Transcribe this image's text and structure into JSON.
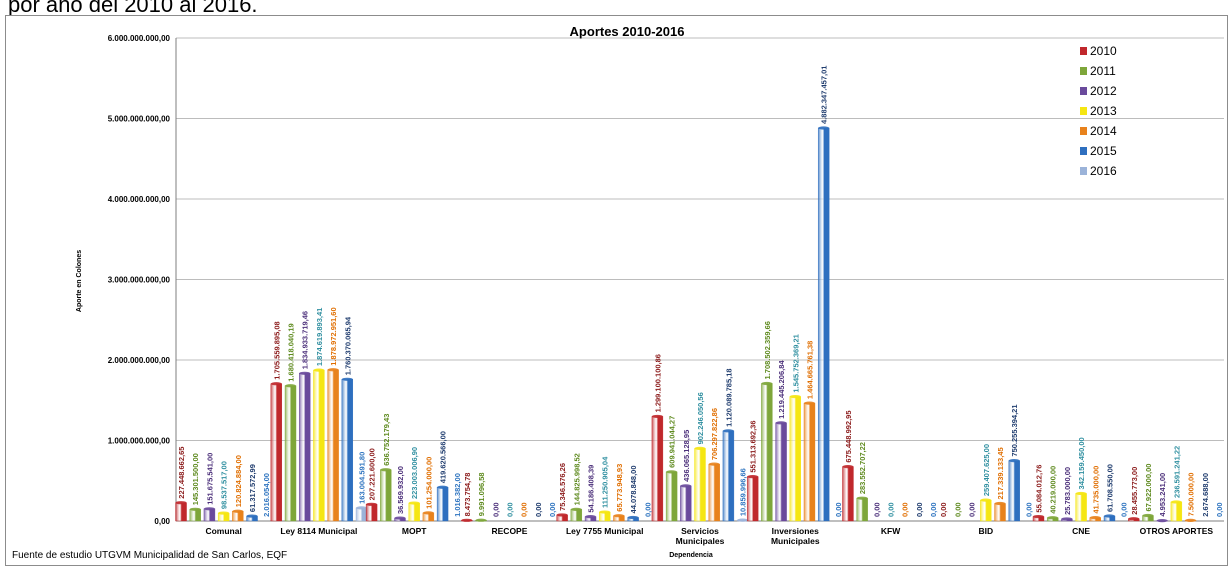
{
  "intro_text": "por año del 2010 al 2016.",
  "source_note": "Fuente de estudio  UTGVM  Municipalidad de San Carlos, EQF",
  "chart_data": {
    "type": "bar",
    "title": "Aportes 2010-2016",
    "xlabel": "Dependencia",
    "ylabel": "Aporte en Colones",
    "ylim": [
      0,
      6000000000
    ],
    "yticks": [
      0,
      1000000000,
      2000000000,
      3000000000,
      4000000000,
      5000000000,
      6000000000
    ],
    "ytick_labels": [
      "0,00",
      "1.000.000.000,00",
      "2.000.000.000,00",
      "3.000.000.000,00",
      "4.000.000.000,00",
      "5.000.000.000,00",
      "6.000.000.000,00"
    ],
    "grid": true,
    "legend_position": "top-right",
    "categories": [
      "Comunal",
      "Ley 8114 Municipal",
      "MOPT",
      "RECOPE",
      "Ley 7755 Municipal",
      "Servicios Municipales",
      "Inversiones Municipales",
      "KFW",
      "BID",
      "CNE",
      "OTROS APORTES"
    ],
    "series": [
      {
        "name": "2010",
        "color": "#c0282c",
        "label_color": "#8b1a1a",
        "values": [
          227448662.65,
          1705559895.08,
          207221600.0,
          8473754.78,
          75346576.26,
          1299100100.86,
          551313692.36,
          675448992.95,
          0,
          55084012.76,
          28455773.0
        ],
        "labels": [
          "227.448.662,65",
          "1.705.559.895,08",
          "207.221.600,00",
          "8.473.754,78",
          "75.346.576,26",
          "1.299.100.100,86",
          "551.313.692,36",
          "675.448.992,95",
          "0,00",
          "55.084.012,76",
          "28.455.773,00"
        ]
      },
      {
        "name": "2011",
        "color": "#7ea63a",
        "label_color": "#5e8a1e",
        "values": [
          145301500.0,
          1680418040.19,
          636752179.43,
          9991096.58,
          144825998.52,
          609941044.27,
          1708502359.66,
          283552707.22,
          0,
          40219000.0,
          67922000.0
        ],
        "labels": [
          "145.301.500,00",
          "1.680.418.040,19",
          "636.752.179,43",
          "9.991.096,58",
          "144.825.998,52",
          "609.941.044,27",
          "1.708.502.359,66",
          "283.552.707,22",
          "0,00",
          "40.219.000,00",
          "67.922.000,00"
        ]
      },
      {
        "name": "2012",
        "color": "#6a4a9c",
        "label_color": "#4b2f7a",
        "values": [
          151675541.0,
          1834933719.46,
          36569932.0,
          0,
          54186408.39,
          436065128.95,
          1219445206.84,
          0,
          0,
          25783000.0,
          4953241.0
        ],
        "labels": [
          "151.675.541,00",
          "1.834.933.719,46",
          "36.569.932,00",
          "0,00",
          "54.186.408,39",
          "436.065.128,95",
          "1.219.445.206,84",
          "0,00",
          "0,00",
          "25.783.000,00",
          "4.953.241,00"
        ]
      },
      {
        "name": "2013",
        "color": "#f5e612",
        "label_color": "#2f8fa0",
        "values": [
          98537517.0,
          1874619893.41,
          223003006.9,
          0,
          111250905.04,
          902246050.56,
          1545752369.21,
          0,
          259407625.0,
          342159450.0,
          236591241.22
        ],
        "labels": [
          "98.537.517,00",
          "1.874.619.893,41",
          "223.003.006,90",
          "0,00",
          "111.250.905,04",
          "902.246.050,56",
          "1.545.752.369,21",
          "0,00",
          "259.407.625,00",
          "342.159.450,00",
          "236.591.241,22"
        ]
      },
      {
        "name": "2014",
        "color": "#e8821c",
        "label_color": "#e06e00",
        "values": [
          120824884.0,
          1878972951.6,
          101254000.0,
          0,
          65773948.93,
          706297822.86,
          1464665761.38,
          0,
          217339133.45,
          41735000.0,
          7500000.0
        ],
        "labels": [
          "120.824.884,00",
          "1.878.972.951,60",
          "101.254.000,00",
          "0,00",
          "65.773.948,93",
          "706.297.822,86",
          "1.464.665.761,38",
          "0,00",
          "217.339.133,45",
          "41.735.000,00",
          "7.500.000,00"
        ]
      },
      {
        "name": "2015",
        "color": "#2e6fbf",
        "label_color": "#1f3c6e",
        "values": [
          61317572.99,
          1760370065.94,
          419620566.0,
          0,
          44078848.0,
          1120089785.18,
          4882347457.01,
          0,
          750255394.21,
          61708550.0,
          2674688.0
        ],
        "labels": [
          "61.317.572,99",
          "1.760.370.065,94",
          "419.620.566,00",
          "0,00",
          "44.078.848,00",
          "1.120.089.785,18",
          "4.882.347.457,01",
          "0,00",
          "750.255.394,21",
          "61.708.550,00",
          "2.674.688,00"
        ]
      },
      {
        "name": "2016",
        "color": "#9bb3d9",
        "label_color": "#2e74c0",
        "values": [
          2016054.0,
          163004591.8,
          1016382.0,
          0,
          0,
          10859996.66,
          0,
          0,
          0,
          0,
          0
        ],
        "labels": [
          "2.016.054,00",
          "163.004.591,80",
          "1.016.382,00",
          "0,00",
          "0,00",
          "10.859.996,66",
          "0,00",
          "0,00",
          "0,00",
          "0,00",
          "0,00"
        ]
      }
    ]
  }
}
